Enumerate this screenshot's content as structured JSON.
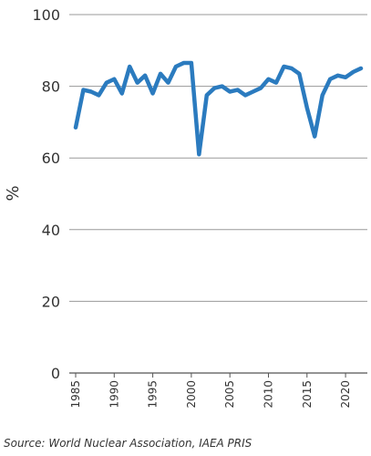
{
  "chart_data": {
    "type": "line",
    "ylabel": "%",
    "xlabel": "",
    "title": "",
    "ylim": [
      0,
      100
    ],
    "y_ticks": [
      "0",
      "20",
      "40",
      "60",
      "80",
      "100"
    ],
    "x_ticks": [
      "1985",
      "1990",
      "1995",
      "2000",
      "2005",
      "2010",
      "2015",
      "2020"
    ],
    "grid": "horizontal",
    "line_color": "#2b7bbf",
    "x": [
      1985,
      1986,
      1987,
      1988,
      1989,
      1990,
      1991,
      1992,
      1993,
      1994,
      1995,
      1996,
      1997,
      1998,
      1999,
      2000,
      2001,
      2002,
      2003,
      2004,
      2005,
      2006,
      2007,
      2008,
      2009,
      2010,
      2011,
      2012,
      2013,
      2014,
      2015,
      2016,
      2017,
      2018,
      2019,
      2020,
      2021,
      2022
    ],
    "series": [
      {
        "values": [
          68.5,
          79,
          78.5,
          77.5,
          81,
          82,
          78,
          85.5,
          81,
          83,
          78,
          83.5,
          81,
          85.5,
          86.5,
          86.5,
          61,
          77.5,
          79.5,
          80,
          78.5,
          79,
          77.5,
          78.5,
          79.5,
          82,
          81,
          85.5,
          85,
          83.5,
          74,
          66,
          77.5,
          82,
          83,
          82.5,
          84,
          85
        ]
      }
    ]
  },
  "source": "Source: World Nuclear Association, IAEA PRIS"
}
